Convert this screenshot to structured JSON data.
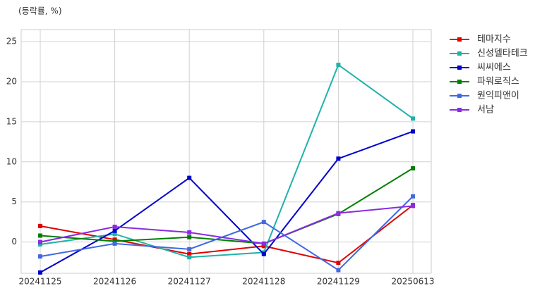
{
  "chart_data": {
    "type": "line",
    "title": "(등락률, %)",
    "categories": [
      "20241125",
      "20241126",
      "20241127",
      "20241128",
      "20241129",
      "20250613"
    ],
    "series": [
      {
        "name": "테마지수",
        "color": "#e00000",
        "values": [
          2.0,
          0.3,
          -1.5,
          -0.5,
          -2.6,
          4.6
        ]
      },
      {
        "name": "신성델타테크",
        "color": "#20b2aa",
        "values": [
          -0.3,
          1.0,
          -1.9,
          -1.3,
          22.1,
          15.4
        ]
      },
      {
        "name": "씨씨에스",
        "color": "#0000cd",
        "values": [
          -3.8,
          1.4,
          8.0,
          -1.5,
          10.4,
          13.8
        ]
      },
      {
        "name": "파워로직스",
        "color": "#008000",
        "values": [
          0.8,
          0.1,
          0.6,
          -0.2,
          3.5,
          9.2
        ]
      },
      {
        "name": "원익피앤이",
        "color": "#4169e1",
        "values": [
          -1.8,
          -0.2,
          -0.9,
          2.5,
          -3.5,
          5.7
        ]
      },
      {
        "name": "서남",
        "color": "#8a2be2",
        "values": [
          0.0,
          1.9,
          1.2,
          -0.2,
          3.6,
          4.5
        ]
      }
    ],
    "ylim": [
      -3.9,
      26.5
    ],
    "yticks": [
      0,
      5,
      10,
      15,
      20,
      25
    ],
    "grid": true,
    "legend": "outside-right"
  }
}
